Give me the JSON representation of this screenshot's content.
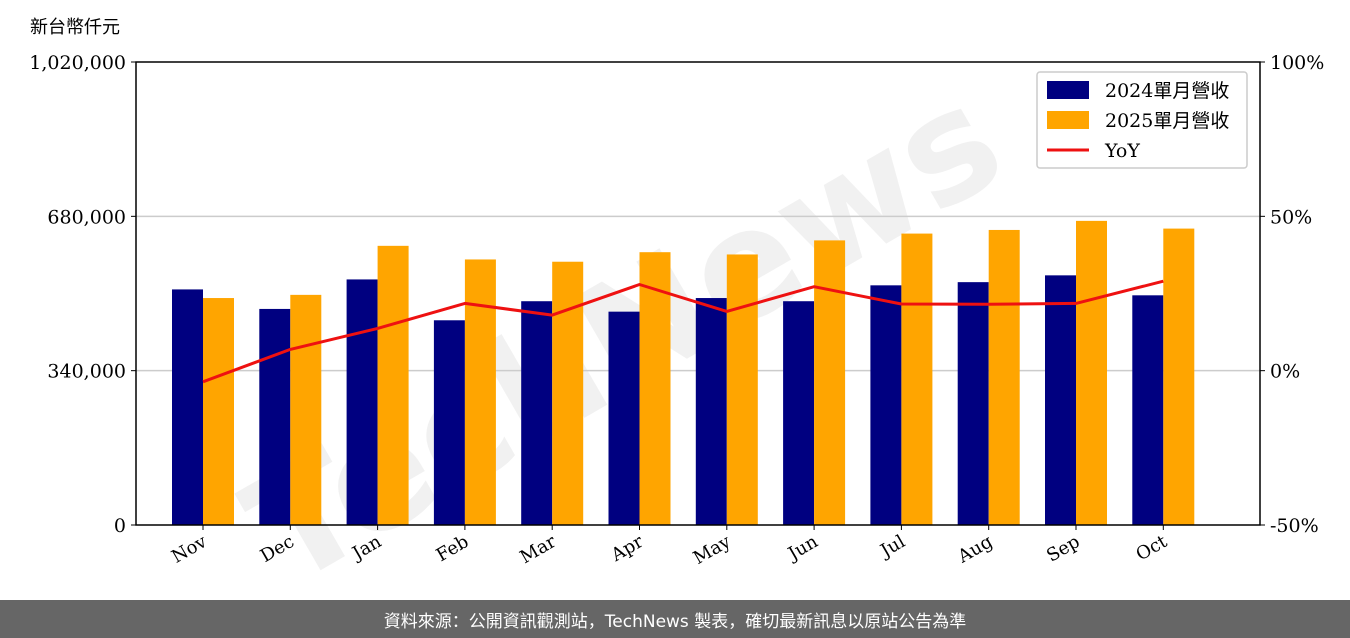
{
  "watermark": "TechNews",
  "footer": {
    "source_text": "資料來源：公開資訊觀測站，TechNews 製表，確切最新訊息以原站公告為準"
  },
  "colors": {
    "series_2024": "#000080",
    "series_2025": "#FFA500",
    "yoy": "#EE1111",
    "grid": "#cccccc",
    "footer_bg": "#666666"
  },
  "chart_data": {
    "type": "bar",
    "unit_label": "新台幣仟元",
    "categories": [
      "Nov",
      "Dec",
      "Jan",
      "Feb",
      "Mar",
      "Apr",
      "May",
      "Jun",
      "Jul",
      "Aug",
      "Sep",
      "Oct"
    ],
    "series": [
      {
        "name": "2024單月營收",
        "type": "bar",
        "values": [
          519000,
          476000,
          541000,
          451000,
          493000,
          470000,
          500000,
          493000,
          528000,
          535000,
          550000,
          506000
        ]
      },
      {
        "name": "2025單月營收",
        "type": "bar",
        "values": [
          500000,
          507000,
          615000,
          585000,
          580000,
          601000,
          596000,
          627000,
          642000,
          650000,
          670000,
          653000
        ]
      },
      {
        "name": "YoY",
        "type": "line",
        "axis": "right",
        "values": [
          -3.6,
          6.9,
          13.7,
          21.8,
          18.0,
          27.9,
          19.2,
          27.2,
          21.6,
          21.5,
          21.8,
          29.0
        ]
      }
    ],
    "y_left": {
      "ticks": [
        "0",
        "340,000",
        "680,000",
        "1,020,000"
      ],
      "ylim": [
        0,
        1020000
      ]
    },
    "y_right": {
      "ticks": [
        "-50%",
        "0%",
        "50%",
        "100%"
      ],
      "ylim": [
        -50,
        100
      ]
    },
    "grid": "horizontal",
    "legend_position": "top-right"
  }
}
